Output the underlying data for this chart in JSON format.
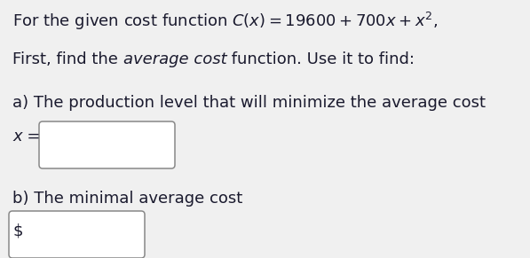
{
  "bg_color": "#f0f0f0",
  "line1_pre": "For the given cost function ",
  "line1_math": "C(x) = 19600 + 700x + x²,",
  "line2_part1": "First, find the ",
  "line2_part2": "average cost",
  "line2_part3": " function. Use it to find:",
  "line3": "a) The production level that will minimize the average cost",
  "line4_label": "x =",
  "line5": "b) The minimal average cost",
  "dollar_sign": "$",
  "font_size": 13.0,
  "text_color": "#1a1a2e",
  "box_edge_color": "#888888",
  "box_face_color": "#ffffff",
  "fig_width": 5.97,
  "fig_height": 2.91,
  "dpi": 100
}
